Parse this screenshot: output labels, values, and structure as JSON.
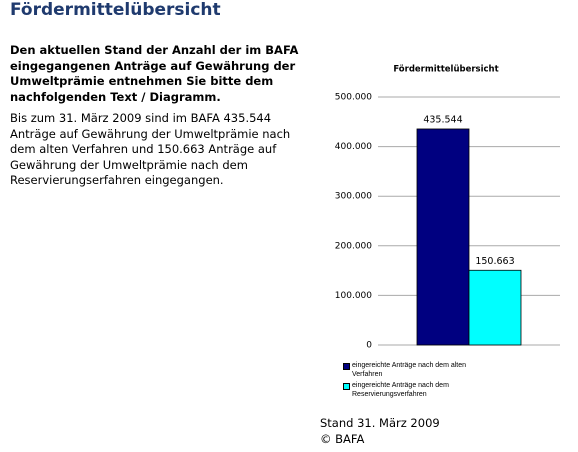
{
  "header": {
    "title": "Fördermittelübersicht"
  },
  "intro": "Den aktuellen Stand der Anzahl der im BAFA eingegangenen Anträge auf Gewährung der Umweltprämie entnehmen Sie bitte dem nachfolgenden Text / Diagramm.",
  "body": "Bis zum 31. März 2009 sind im BAFA 435.544 Anträge auf Gewährung der Umweltprämie nach dem alten Verfahren und 150.663 Anträge auf Gewährung der Umweltprämie nach dem Reservierungserfahren eingegangen.",
  "footer": {
    "date": "Stand 31. März 2009",
    "copyright": "© BAFA"
  },
  "chart_data": {
    "type": "bar",
    "title": "Fördermittelübersicht",
    "categories": [
      null
    ],
    "series": [
      {
        "name": "eingereichte Anträge nach dem alten Verfahren",
        "color": "#000080",
        "values": [
          435544
        ],
        "value_labels": [
          "435.544"
        ]
      },
      {
        "name": "eingereichte Anträge nach dem Reservierungsverfahren",
        "color": "#00ffff",
        "values": [
          150663
        ],
        "value_labels": [
          "150.663"
        ]
      }
    ],
    "ylim": [
      0,
      500000
    ],
    "yticks": [
      0,
      {
        "value": 100000,
        "label": "100.000"
      },
      {
        "value": 200000,
        "label": "200.000"
      },
      {
        "value": 300000,
        "label": "300.000"
      },
      {
        "value": 400000,
        "label": "400.000"
      },
      {
        "value": 500000,
        "label": "500.000"
      }
    ],
    "grid": true
  }
}
